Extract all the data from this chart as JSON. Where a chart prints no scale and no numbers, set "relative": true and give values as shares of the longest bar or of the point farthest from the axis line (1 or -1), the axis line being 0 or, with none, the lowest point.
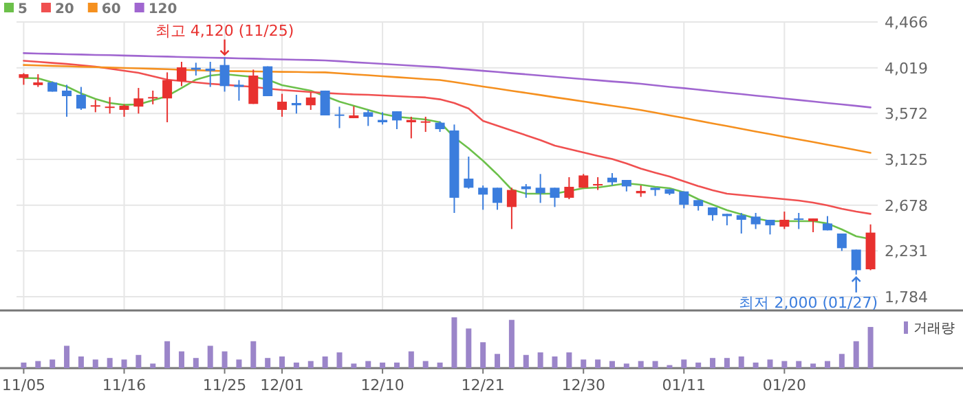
{
  "chart_data": [
    {
      "type": "candlestick",
      "categories": [
        "11/05",
        null,
        null,
        null,
        null,
        null,
        null,
        "11/16",
        null,
        null,
        null,
        null,
        null,
        null,
        "11/25",
        null,
        null,
        null,
        "12/01",
        null,
        null,
        null,
        null,
        null,
        null,
        "12/10",
        null,
        null,
        null,
        null,
        null,
        null,
        "12/21",
        null,
        null,
        null,
        null,
        null,
        null,
        "12/30",
        null,
        null,
        null,
        null,
        null,
        null,
        "01/11",
        null,
        null,
        null,
        null,
        null,
        null,
        "01/20",
        null,
        null,
        null,
        null,
        null,
        null
      ],
      "ohlc": [
        [
          3920,
          3966,
          3853,
          3956
        ],
        [
          3850,
          3956,
          3832,
          3876
        ],
        [
          3876,
          3885,
          3786,
          3786
        ],
        [
          3796,
          3853,
          3541,
          3742
        ],
        [
          3755,
          3832,
          3608,
          3621
        ],
        [
          3640,
          3706,
          3585,
          3653
        ],
        [
          3630,
          3733,
          3572,
          3640
        ],
        [
          3608,
          3662,
          3541,
          3648
        ],
        [
          3640,
          3822,
          3572,
          3720
        ],
        [
          3724,
          3796,
          3662,
          3733
        ],
        [
          3720,
          3974,
          3487,
          3899
        ],
        [
          3889,
          4077,
          3840,
          4023
        ],
        [
          4019,
          4068,
          3943,
          4001
        ],
        [
          4010,
          4077,
          3832,
          3988
        ],
        [
          4046,
          4120,
          3786,
          3840
        ],
        [
          3853,
          3899,
          3698,
          3832
        ],
        [
          3666,
          4001,
          3666,
          3943
        ],
        [
          4033,
          4033,
          3742,
          3742
        ],
        [
          3608,
          3765,
          3541,
          3688
        ],
        [
          3675,
          3755,
          3572,
          3653
        ],
        [
          3653,
          3778,
          3608,
          3729
        ],
        [
          3796,
          3796,
          3554,
          3554
        ],
        [
          3563,
          3639,
          3430,
          3550
        ],
        [
          3527,
          3644,
          3527,
          3554
        ],
        [
          3585,
          3608,
          3451,
          3541
        ],
        [
          3510,
          3585,
          3465,
          3487
        ],
        [
          3594,
          3594,
          3420,
          3505
        ],
        [
          3487,
          3541,
          3330,
          3510
        ],
        [
          3487,
          3541,
          3393,
          3496
        ],
        [
          3483,
          3496,
          3393,
          3420
        ],
        [
          3407,
          3465,
          2602,
          2750
        ],
        [
          2937,
          3152,
          2839,
          2848
        ],
        [
          2848,
          2870,
          2633,
          2781
        ],
        [
          2848,
          2848,
          2633,
          2700
        ],
        [
          2660,
          2848,
          2445,
          2826
        ],
        [
          2861,
          2884,
          2750,
          2834
        ],
        [
          2848,
          2982,
          2700,
          2794
        ],
        [
          2848,
          2848,
          2660,
          2750
        ],
        [
          2750,
          2951,
          2736,
          2857
        ],
        [
          2848,
          2982,
          2848,
          2968
        ],
        [
          2870,
          2951,
          2826,
          2884
        ],
        [
          2946,
          2991,
          2870,
          2901
        ],
        [
          2924,
          2924,
          2812,
          2861
        ],
        [
          2794,
          2870,
          2759,
          2817
        ],
        [
          2848,
          2848,
          2768,
          2826
        ],
        [
          2834,
          2834,
          2776,
          2790
        ],
        [
          2812,
          2812,
          2647,
          2682
        ],
        [
          2727,
          2727,
          2625,
          2669
        ],
        [
          2656,
          2656,
          2526,
          2580
        ],
        [
          2593,
          2593,
          2481,
          2571
        ],
        [
          2580,
          2602,
          2401,
          2535
        ],
        [
          2566,
          2602,
          2445,
          2491
        ],
        [
          2535,
          2535,
          2392,
          2481
        ],
        [
          2468,
          2615,
          2445,
          2535
        ],
        [
          2548,
          2602,
          2445,
          2535
        ],
        [
          2521,
          2548,
          2414,
          2548
        ],
        [
          2499,
          2571,
          2432,
          2432
        ],
        [
          2401,
          2401,
          2231,
          2258
        ],
        [
          2244,
          2244,
          2000,
          2043
        ],
        [
          2052,
          2490,
          2043,
          2410
        ]
      ],
      "colors": [
        "#e8312f",
        "#e8312f",
        "#3b7ddd",
        "#3b7ddd",
        "#3b7ddd",
        "#e8312f",
        "#e8312f",
        "#e8312f",
        "#e8312f",
        "#e8312f",
        "#e8312f",
        "#e8312f",
        "#3b7ddd",
        "#3b7ddd",
        "#3b7ddd",
        "#3b7ddd",
        "#e8312f",
        "#3b7ddd",
        "#e8312f",
        "#3b7ddd",
        "#e8312f",
        "#3b7ddd",
        "#3b7ddd",
        "#e8312f",
        "#3b7ddd",
        "#3b7ddd",
        "#3b7ddd",
        "#e8312f",
        "#e8312f",
        "#3b7ddd",
        "#3b7ddd",
        "#3b7ddd",
        "#3b7ddd",
        "#3b7ddd",
        "#e8312f",
        "#3b7ddd",
        "#3b7ddd",
        "#3b7ddd",
        "#e8312f",
        "#e8312f",
        "#e8312f",
        "#3b7ddd",
        "#3b7ddd",
        "#e8312f",
        "#3b7ddd",
        "#3b7ddd",
        "#3b7ddd",
        "#3b7ddd",
        "#3b7ddd",
        "#3b7ddd",
        "#3b7ddd",
        "#3b7ddd",
        "#3b7ddd",
        "#e8312f",
        "#3b7ddd",
        "#e8312f",
        "#3b7ddd",
        "#3b7ddd",
        "#3b7ddd",
        "#e8312f"
      ],
      "series": [
        {
          "name": "5",
          "type": "line",
          "color": "#6cc04a",
          "values": [
            3920,
            3916,
            3876,
            3836,
            3769,
            3715,
            3675,
            3657,
            3661,
            3702,
            3742,
            3822,
            3903,
            3943,
            3956,
            3943,
            3930,
            3903,
            3849,
            3822,
            3796,
            3742,
            3688,
            3648,
            3608,
            3568,
            3541,
            3527,
            3514,
            3487,
            3340,
            3232,
            3112,
            2978,
            2830,
            2790,
            2790,
            2790,
            2817,
            2843,
            2850,
            2870,
            2890,
            2877,
            2857,
            2843,
            2803,
            2736,
            2683,
            2629,
            2589,
            2548,
            2522,
            2522,
            2522,
            2522,
            2499,
            2441,
            2374,
            2347
          ]
        },
        {
          "name": "20",
          "type": "line",
          "color": "#f05050",
          "values": [
            4087,
            4077,
            4066,
            4056,
            4044,
            4030,
            4010,
            3990,
            3970,
            3936,
            3903,
            3889,
            3876,
            3863,
            3853,
            3842,
            3832,
            3816,
            3802,
            3792,
            3782,
            3773,
            3765,
            3759,
            3755,
            3749,
            3742,
            3735,
            3729,
            3711,
            3675,
            3621,
            3500,
            3454,
            3407,
            3360,
            3313,
            3259,
            3226,
            3192,
            3159,
            3129,
            3085,
            3035,
            2995,
            2957,
            2910,
            2864,
            2823,
            2790,
            2776,
            2763,
            2750,
            2736,
            2723,
            2703,
            2676,
            2642,
            2615,
            2593
          ]
        },
        {
          "name": "60",
          "type": "line",
          "color": "#f5901f",
          "values": [
            4046,
            4042,
            4038,
            4034,
            4029,
            4025,
            4021,
            4017,
            4013,
            4009,
            4005,
            3999,
            3995,
            3991,
            3987,
            3986,
            3983,
            3982,
            3979,
            3978,
            3975,
            3974,
            3965,
            3955,
            3946,
            3936,
            3927,
            3918,
            3908,
            3899,
            3879,
            3857,
            3836,
            3816,
            3794,
            3774,
            3753,
            3731,
            3711,
            3690,
            3669,
            3648,
            3628,
            3606,
            3581,
            3554,
            3529,
            3502,
            3476,
            3450,
            3424,
            3397,
            3372,
            3345,
            3319,
            3294,
            3267,
            3242,
            3215,
            3189
          ]
        },
        {
          "name": "120",
          "type": "line",
          "color": "#a066d0",
          "values": [
            4162,
            4158,
            4155,
            4151,
            4148,
            4144,
            4142,
            4138,
            4135,
            4131,
            4128,
            4124,
            4121,
            4117,
            4115,
            4111,
            4108,
            4104,
            4101,
            4097,
            4095,
            4091,
            4083,
            4073,
            4065,
            4057,
            4049,
            4040,
            4032,
            4024,
            4011,
            4001,
            3989,
            3978,
            3966,
            3955,
            3943,
            3931,
            3920,
            3908,
            3897,
            3885,
            3875,
            3863,
            3848,
            3833,
            3820,
            3805,
            3790,
            3775,
            3762,
            3747,
            3733,
            3718,
            3704,
            3690,
            3675,
            3661,
            3647,
            3632
          ]
        }
      ],
      "ylim": [
        1650,
        4466
      ],
      "yticks": [
        {
          "value": 4466,
          "label": "4,466"
        },
        {
          "value": 4019,
          "label": "4,019"
        },
        {
          "value": 3572,
          "label": "3,572"
        },
        {
          "value": 3125,
          "label": "3,125"
        },
        {
          "value": 2678,
          "label": "2,678"
        },
        {
          "value": 2231,
          "label": "2,231"
        },
        {
          "value": 1784,
          "label": "1,784"
        }
      ],
      "grid": true,
      "legend": "top left",
      "tick_labels": "y",
      "annotations": [
        {
          "text": "최고 4,120 (11/25)",
          "x": "11/25",
          "y": 4120
        },
        "최저 2,000 (01/27)"
      ]
    },
    {
      "type": "bar",
      "relative": true,
      "categories": [
        "11/05",
        null,
        null,
        null,
        null,
        null,
        null,
        "11/16",
        null,
        null,
        null,
        null,
        null,
        null,
        "11/25",
        null,
        null,
        null,
        "12/01",
        null,
        null,
        null,
        null,
        null,
        null,
        "12/10",
        null,
        null,
        null,
        null,
        null,
        null,
        "12/21",
        null,
        null,
        null,
        null,
        null,
        null,
        "12/30",
        null,
        null,
        null,
        null,
        null,
        null,
        "01/11",
        null,
        null,
        null,
        null,
        null,
        null,
        "01/20",
        null,
        null,
        null,
        null,
        null,
        null
      ],
      "series": [
        {
          "name": "거래량",
          "color": "#9b85c9",
          "values": [
            0.11,
            0.14,
            0.17,
            0.44,
            0.23,
            0.17,
            0.2,
            0.17,
            0.26,
            0.09,
            0.53,
            0.33,
            0.2,
            0.44,
            0.33,
            0.17,
            0.53,
            0.2,
            0.23,
            0.11,
            0.14,
            0.23,
            0.31,
            0.09,
            0.14,
            0.11,
            0.11,
            0.33,
            0.14,
            0.11,
            1,
            0.78,
            0.51,
            0.28,
            0.95,
            0.26,
            0.31,
            0.23,
            0.31,
            0.17,
            0.17,
            0.14,
            0.09,
            0.14,
            0.14,
            0.06,
            0.17,
            0.11,
            0.2,
            0.2,
            0.23,
            0.11,
            0.17,
            0.14,
            0.14,
            0.09,
            0.14,
            0.28,
            0.53,
            0.81
          ]
        }
      ],
      "legend": "top right",
      "tick_labels": "x"
    }
  ]
}
